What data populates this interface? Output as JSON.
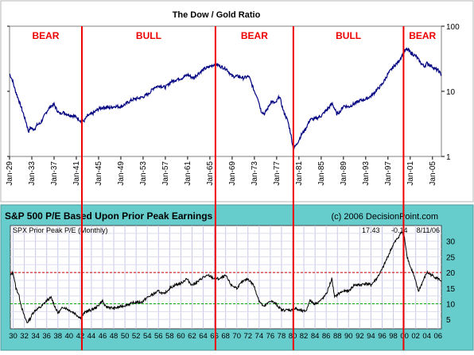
{
  "chart_data": [
    {
      "type": "line",
      "title": "The Dow / Gold Ratio",
      "scale": "log",
      "ylim": [
        1,
        100
      ],
      "y_ticks": [
        "1",
        "10",
        "100"
      ],
      "x_range": [
        1929,
        2006.6
      ],
      "x_ticks": [
        "Jan-29",
        "Jan-33",
        "Jan-37",
        "Jan-41",
        "Jan-45",
        "Jan-49",
        "Jan-53",
        "Jan-57",
        "Jan-61",
        "Jan-65",
        "Jan-69",
        "Jan-73",
        "Jan-77",
        "Jan-81",
        "Jan-85",
        "Jan-89",
        "Jan-93",
        "Jan-97",
        "Jan-01",
        "Jan-05"
      ],
      "regimes": [
        {
          "label": "BEAR",
          "from": 1929,
          "to": 1942
        },
        {
          "label": "BULL",
          "from": 1942,
          "to": 1966
        },
        {
          "label": "BEAR",
          "from": 1966,
          "to": 1980
        },
        {
          "label": "BULL",
          "from": 1980,
          "to": 1999.8
        },
        {
          "label": "BEAR",
          "from": 1999.8,
          "to": 2006.6
        }
      ],
      "series": [
        {
          "x": [
            1929.0,
            1929.5,
            1930.0,
            1930.5,
            1931.0,
            1931.5,
            1932.0,
            1932.4,
            1932.8,
            1933.2,
            1933.6,
            1934.0,
            1934.5,
            1935.0,
            1935.5,
            1936.0,
            1936.5,
            1937.0,
            1937.5,
            1938.0,
            1938.5,
            1939.0,
            1939.5,
            1940.0,
            1940.5,
            1941.0,
            1941.5,
            1942.0,
            1942.5,
            1943.0,
            1944.0,
            1945.0,
            1946.0,
            1947.0,
            1948.0,
            1949.0,
            1950.0,
            1951.0,
            1952.0,
            1953.0,
            1954.0,
            1955.0,
            1956.0,
            1957.0,
            1958.0,
            1959.0,
            1960.0,
            1961.0,
            1962.0,
            1963.0,
            1964.0,
            1965.0,
            1966.0,
            1967.0,
            1968.0,
            1969.0,
            1970.0,
            1971.0,
            1972.0,
            1973.0,
            1973.6,
            1974.2,
            1974.8,
            1975.4,
            1976.0,
            1976.8,
            1977.5,
            1978.2,
            1979.0,
            1979.5,
            1980.0,
            1980.5,
            1981.0,
            1981.5,
            1982.0,
            1982.5,
            1983.0,
            1984.0,
            1985.0,
            1986.0,
            1987.0,
            1987.8,
            1988.5,
            1989.0,
            1990.0,
            1991.0,
            1992.0,
            1993.0,
            1994.0,
            1995.0,
            1996.0,
            1997.0,
            1998.0,
            1998.8,
            1999.5,
            2000.0,
            2000.5,
            2001.0,
            2001.5,
            2002.0,
            2002.8,
            2003.5,
            2004.0,
            2005.0,
            2005.5,
            2006.0,
            2006.6
          ],
          "y": [
            18.5,
            15,
            10.5,
            8,
            6,
            4.5,
            3.3,
            2.4,
            2.8,
            2.6,
            2.7,
            3.1,
            3.2,
            3.8,
            4.6,
            5.4,
            6,
            6.3,
            5.2,
            4.5,
            4.8,
            4.6,
            4.4,
            4.3,
            4.2,
            4,
            3.7,
            3.4,
            3.6,
            4.2,
            4.6,
            5.4,
            5.7,
            5.6,
            5.9,
            5.8,
            6.5,
            7.4,
            7.8,
            8.2,
            9.2,
            11.5,
            12.2,
            11.5,
            14,
            15.2,
            16,
            18,
            16,
            19,
            22,
            24,
            26.5,
            24,
            22,
            17,
            17,
            16,
            17,
            10,
            8,
            5,
            4.5,
            5.5,
            7,
            6.5,
            8.5,
            5,
            3.5,
            2.3,
            1.3,
            1.5,
            1.8,
            2.2,
            2.5,
            3,
            3.7,
            3.8,
            4.2,
            5.2,
            6.5,
            4.5,
            5,
            6,
            5.8,
            6.5,
            7.2,
            7.6,
            8.5,
            10.5,
            13,
            18.5,
            24,
            28,
            35,
            42,
            44,
            40,
            37,
            35,
            28,
            24,
            27,
            24,
            22,
            21,
            18
          ]
        }
      ]
    },
    {
      "type": "line",
      "title": "S&P 500 P/E Based Upon Prior Peak Earnings",
      "source": "(c) 2006 DecisionPoint.com",
      "legend": "SPX Prior Peak P/E (Monthly)",
      "readout": {
        "value": "17.43",
        "change": "-0.14",
        "date": "8/11/06"
      },
      "ylim": [
        2,
        35
      ],
      "y_ticks": [
        "5",
        "10",
        "15",
        "20",
        "25",
        "30"
      ],
      "x_range": [
        1929.5,
        2006.6
      ],
      "x_ticks": [
        "30",
        "32",
        "34",
        "36",
        "38",
        "40",
        "42",
        "44",
        "46",
        "48",
        "50",
        "52",
        "54",
        "56",
        "58",
        "60",
        "62",
        "64",
        "66",
        "68",
        "70",
        "72",
        "74",
        "76",
        "78",
        "80",
        "82",
        "84",
        "86",
        "88",
        "90",
        "92",
        "94",
        "96",
        "98",
        "00",
        "02",
        "04",
        "06"
      ],
      "reference_lines": [
        {
          "value": 20,
          "color": "#cc0000"
        },
        {
          "value": 10,
          "color": "#00aa00"
        }
      ],
      "series": [
        {
          "name": "SPX Prior Peak P/E",
          "x": [
            1929.5,
            1930.0,
            1930.5,
            1931.0,
            1931.5,
            1932.0,
            1932.5,
            1933.0,
            1933.5,
            1934.0,
            1935.0,
            1936.0,
            1936.8,
            1937.5,
            1938.0,
            1939.0,
            1940.0,
            1941.0,
            1942.0,
            1942.5,
            1943.0,
            1944.0,
            1945.0,
            1946.0,
            1946.5,
            1947.0,
            1948.0,
            1949.0,
            1950.0,
            1951.0,
            1952.0,
            1953.0,
            1954.0,
            1955.0,
            1956.0,
            1957.0,
            1958.0,
            1959.0,
            1960.0,
            1961.0,
            1962.0,
            1963.0,
            1964.0,
            1965.0,
            1966.0,
            1967.0,
            1968.0,
            1969.0,
            1970.0,
            1971.0,
            1972.0,
            1973.0,
            1974.0,
            1974.8,
            1975.5,
            1976.0,
            1977.0,
            1978.0,
            1979.0,
            1980.0,
            1980.5,
            1981.0,
            1982.0,
            1982.5,
            1983.0,
            1984.0,
            1985.0,
            1986.0,
            1987.0,
            1987.5,
            1988.0,
            1989.0,
            1990.0,
            1991.0,
            1992.0,
            1993.0,
            1994.0,
            1995.0,
            1996.0,
            1997.0,
            1998.0,
            1998.8,
            1999.5,
            2000.0,
            2000.5,
            2001.0,
            2001.5,
            2002.0,
            2002.5,
            2003.0,
            2003.5,
            2004.0,
            2005.0,
            2006.0,
            2006.6
          ],
          "y": [
            19,
            20,
            15,
            13,
            9,
            6,
            4,
            5,
            7,
            8,
            9,
            11,
            12,
            9,
            7,
            9,
            8,
            7,
            5.5,
            6.5,
            7.5,
            8,
            9,
            11,
            9,
            9,
            8.5,
            9,
            9.5,
            10,
            10.5,
            10.5,
            12,
            13,
            14,
            13,
            15,
            16,
            16.5,
            18,
            16,
            17,
            18.5,
            19,
            18,
            18,
            19,
            16,
            15,
            17,
            18,
            16,
            11,
            9,
            10,
            11,
            10,
            8,
            8,
            8,
            8.5,
            8,
            7.5,
            8,
            11,
            10,
            11,
            13,
            18,
            12,
            13,
            14,
            14,
            16,
            16,
            16.5,
            16,
            18,
            21,
            25,
            29,
            31,
            33,
            31,
            25,
            22,
            20,
            17,
            14,
            16,
            18,
            20,
            19,
            18,
            17.4
          ]
        }
      ]
    }
  ]
}
